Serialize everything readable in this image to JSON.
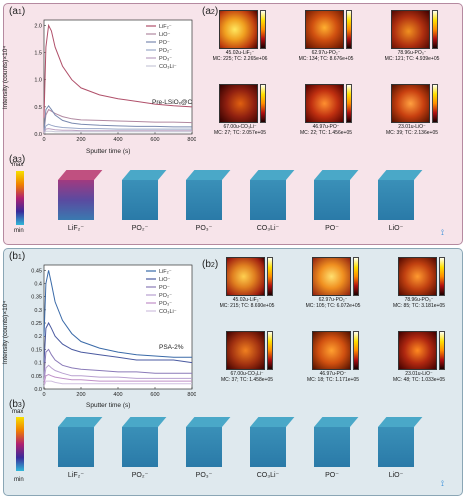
{
  "top": {
    "label_a1_main": "(a",
    "label_a1_sub": "1",
    "label_a1_end": ")",
    "label_a2_main": "(a",
    "label_a2_sub": "2",
    "label_a2_end": ")",
    "label_a3_main": "(a",
    "label_a3_sub": "3",
    "label_a3_end": ")",
    "sample_label": "Pre-LSiOₓ@C",
    "colorbar_max": "max",
    "colorbar_min": "min",
    "cube_labels": [
      "LiF₂⁻",
      "PO₂⁻",
      "PO₃⁻",
      "CO₃Li⁻",
      "PO⁻",
      "LiO⁻"
    ],
    "maps": [
      {
        "l1": "45.02u-LiF₂⁻",
        "l2": "MC: 225; TC: 2.265e+06"
      },
      {
        "l1": "62.97u-PO₂⁻",
        "l2": "MC: 134; TC: 8.676e+05"
      },
      {
        "l1": "78.96u-PO₃⁻",
        "l2": "MC: 121; TC: 4.939e+05"
      },
      {
        "l1": "67.00u-CO₃Li⁻",
        "l2": "MC: 27; TC: 2.057e+05"
      },
      {
        "l1": "46.97u-PO⁻",
        "l2": "MC: 22; TC: 1.456e+05"
      },
      {
        "l1": "23.01u-LiO⁻",
        "l2": "MC: 39; TC: 2.136e+05"
      }
    ]
  },
  "bottom": {
    "label_b1_main": "(b",
    "label_b1_sub": "1",
    "label_b1_end": ")",
    "label_b2_main": "(b",
    "label_b2_sub": "2",
    "label_b2_end": ")",
    "label_b3_main": "(b",
    "label_b3_sub": "3",
    "label_b3_end": ")",
    "sample_label": "PSA-2%",
    "colorbar_max": "max",
    "colorbar_min": "min",
    "cube_labels": [
      "LiF₂⁻",
      "PO₂⁻",
      "PO₃⁻",
      "CO₃Li⁻",
      "PO⁻",
      "LiO⁻"
    ],
    "maps": [
      {
        "l1": "45.02u-LiF₂⁻",
        "l2": "MC: 215; TC: 8.690e+05"
      },
      {
        "l1": "62.97u-PO₂⁻",
        "l2": "MC: 105; TC: 6.072e+05"
      },
      {
        "l1": "78.96u-PO₃⁻",
        "l2": "MC: 85; TC: 3.181e+05"
      },
      {
        "l1": "67.00u-CO₃Li⁻",
        "l2": "MC: 37; TC: 1.458e+05"
      },
      {
        "l1": "46.97u-PO⁻",
        "l2": "MC: 18; TC: 1.171e+05"
      },
      {
        "l1": "23.01u-LiO⁻",
        "l2": "MC: 48; TC: 1.033e+05"
      }
    ]
  },
  "chart_data": [
    {
      "type": "line",
      "xlabel": "Sputter time (s)",
      "ylabel": "Intensity (counts)×10⁴",
      "xlim": [
        0,
        800
      ],
      "ylim": [
        0,
        2.1
      ],
      "xticks": [
        0,
        200,
        400,
        600,
        800
      ],
      "yticks": [
        0.0,
        0.5,
        1.0,
        1.5,
        2.0
      ],
      "legend_position": "top-right",
      "x": [
        0,
        10,
        25,
        40,
        60,
        100,
        150,
        200,
        300,
        400,
        500,
        600,
        700,
        800
      ],
      "series": [
        {
          "name": "LiF₂⁻",
          "color": "#b0506a",
          "values": [
            0.3,
            1.6,
            2.0,
            1.9,
            1.6,
            1.25,
            1.0,
            0.85,
            0.72,
            0.65,
            0.6,
            0.55,
            0.52,
            0.5
          ]
        },
        {
          "name": "LiO⁻",
          "color": "#b088a0",
          "values": [
            0.05,
            0.35,
            0.45,
            0.42,
            0.38,
            0.32,
            0.28,
            0.26,
            0.25,
            0.24,
            0.23,
            0.22,
            0.22,
            0.21
          ]
        },
        {
          "name": "PO⁻",
          "color": "#7a8ab0",
          "values": [
            0.05,
            0.45,
            0.52,
            0.45,
            0.35,
            0.25,
            0.2,
            0.18,
            0.16,
            0.15,
            0.14,
            0.14,
            0.13,
            0.13
          ]
        },
        {
          "name": "PO₂⁻",
          "color": "#9aa8c8",
          "values": [
            0.03,
            0.15,
            0.18,
            0.16,
            0.14,
            0.12,
            0.11,
            0.1,
            0.1,
            0.09,
            0.09,
            0.09,
            0.09,
            0.09
          ]
        },
        {
          "name": "PO₃⁻",
          "color": "#bba0c0",
          "values": [
            0.02,
            0.09,
            0.1,
            0.09,
            0.08,
            0.07,
            0.07,
            0.06,
            0.06,
            0.06,
            0.06,
            0.06,
            0.06,
            0.06
          ]
        },
        {
          "name": "CO₃Li⁻",
          "color": "#c8c8d8",
          "values": [
            0.01,
            0.05,
            0.05,
            0.05,
            0.04,
            0.04,
            0.04,
            0.04,
            0.04,
            0.04,
            0.04,
            0.04,
            0.04,
            0.04
          ]
        }
      ]
    },
    {
      "type": "line",
      "xlabel": "Sputter time (s)",
      "ylabel": "Intensity (counts)×10⁴",
      "xlim": [
        0,
        800
      ],
      "ylim": [
        0,
        0.47
      ],
      "xticks": [
        0,
        200,
        400,
        600,
        800
      ],
      "yticks": [
        0.0,
        0.05,
        0.1,
        0.15,
        0.2,
        0.25,
        0.3,
        0.35,
        0.4,
        0.45
      ],
      "legend_position": "top-right",
      "x": [
        0,
        10,
        25,
        40,
        60,
        100,
        150,
        200,
        300,
        400,
        500,
        600,
        700,
        800
      ],
      "series": [
        {
          "name": "LiF₂⁻",
          "color": "#3a6aa8",
          "values": [
            0.2,
            0.4,
            0.45,
            0.4,
            0.33,
            0.26,
            0.21,
            0.18,
            0.155,
            0.14,
            0.13,
            0.125,
            0.12,
            0.12
          ]
        },
        {
          "name": "LiO⁻",
          "color": "#4a5aa0",
          "values": [
            0.1,
            0.23,
            0.25,
            0.23,
            0.2,
            0.17,
            0.15,
            0.14,
            0.13,
            0.12,
            0.11,
            0.11,
            0.11,
            0.1
          ]
        },
        {
          "name": "PO⁻",
          "color": "#8a7ab8",
          "values": [
            0.05,
            0.14,
            0.15,
            0.13,
            0.11,
            0.09,
            0.08,
            0.075,
            0.07,
            0.065,
            0.065,
            0.06,
            0.06,
            0.06
          ]
        },
        {
          "name": "PO₂⁻",
          "color": "#b8a0d0",
          "values": [
            0.03,
            0.08,
            0.09,
            0.08,
            0.07,
            0.06,
            0.05,
            0.05,
            0.045,
            0.045,
            0.04,
            0.04,
            0.04,
            0.04
          ]
        },
        {
          "name": "PO₃⁻",
          "color": "#c090c8",
          "values": [
            0.02,
            0.05,
            0.055,
            0.05,
            0.045,
            0.04,
            0.035,
            0.035,
            0.03,
            0.03,
            0.03,
            0.03,
            0.03,
            0.03
          ]
        },
        {
          "name": "CO₃Li⁻",
          "color": "#d0c0e0",
          "values": [
            0.01,
            0.03,
            0.03,
            0.03,
            0.025,
            0.02,
            0.02,
            0.02,
            0.02,
            0.02,
            0.02,
            0.02,
            0.02,
            0.02
          ]
        }
      ]
    }
  ]
}
